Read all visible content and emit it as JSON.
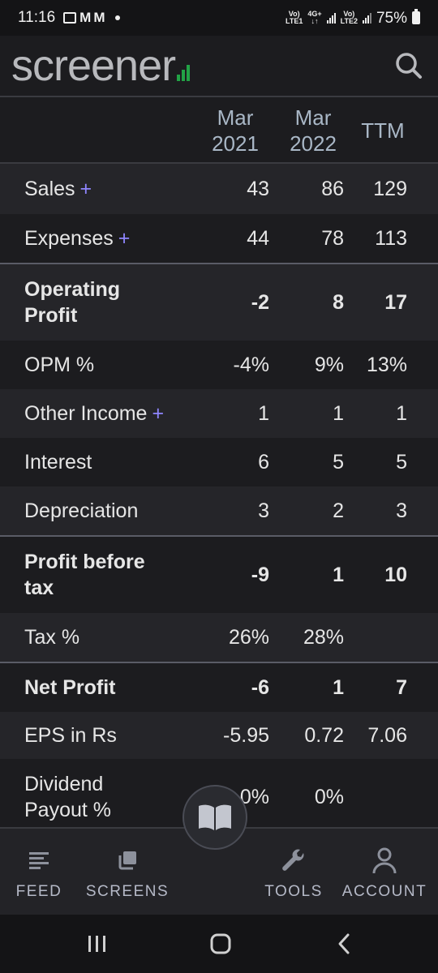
{
  "status_bar": {
    "time": "11:16",
    "sim1_top": "Vo)",
    "sim1_bottom": "LTE1",
    "net_top": "4G+",
    "net_bottom": "↓↑",
    "sim2_top": "Vo)",
    "sim2_bottom": "LTE2",
    "battery": "75%"
  },
  "header": {
    "logo": "screener",
    "search_icon": "search-icon"
  },
  "table": {
    "columns": [
      "Mar 2021",
      "Mar 2022",
      "TTM"
    ],
    "col1_line1": "Mar",
    "col1_line2": "2021",
    "col2_line1": "Mar",
    "col2_line2": "2022",
    "col3": "TTM",
    "rows": [
      {
        "label": "Sales",
        "plus": "+",
        "v": [
          "43",
          "86",
          "129"
        ]
      },
      {
        "label": "Expenses",
        "plus": "+",
        "v": [
          "44",
          "78",
          "113"
        ]
      },
      {
        "label_line1": "Operating",
        "label_line2": "Profit",
        "v": [
          "-2",
          "8",
          "17"
        ]
      },
      {
        "label": "OPM %",
        "v": [
          "-4%",
          "9%",
          "13%"
        ]
      },
      {
        "label": "Other Income",
        "plus": "+",
        "v": [
          "1",
          "1",
          "1"
        ]
      },
      {
        "label": "Interest",
        "v": [
          "6",
          "5",
          "5"
        ]
      },
      {
        "label": "Depreciation",
        "v": [
          "3",
          "2",
          "3"
        ]
      },
      {
        "label_line1": "Profit before",
        "label_line2": "tax",
        "v": [
          "-9",
          "1",
          "10"
        ]
      },
      {
        "label": "Tax %",
        "v": [
          "26%",
          "28%",
          ""
        ]
      },
      {
        "label": "Net Profit",
        "v": [
          "-6",
          "1",
          "7"
        ]
      },
      {
        "label": "EPS in Rs",
        "v": [
          "-5.95",
          "0.72",
          "7.06"
        ]
      },
      {
        "label_line1": "Dividend",
        "label_line2": "Payout %",
        "v": [
          "0%",
          "0%",
          ""
        ]
      }
    ]
  },
  "bottom_nav": {
    "feed": "FEED",
    "screens": "SCREENS",
    "tools": "TOOLS",
    "account": "ACCOUNT"
  },
  "colors": {
    "background": "#1c1c1f",
    "alt_row": "#252529",
    "plus_accent": "#8f86ff",
    "logo_green": "#22a346",
    "nav_text": "#b5b9c7"
  }
}
